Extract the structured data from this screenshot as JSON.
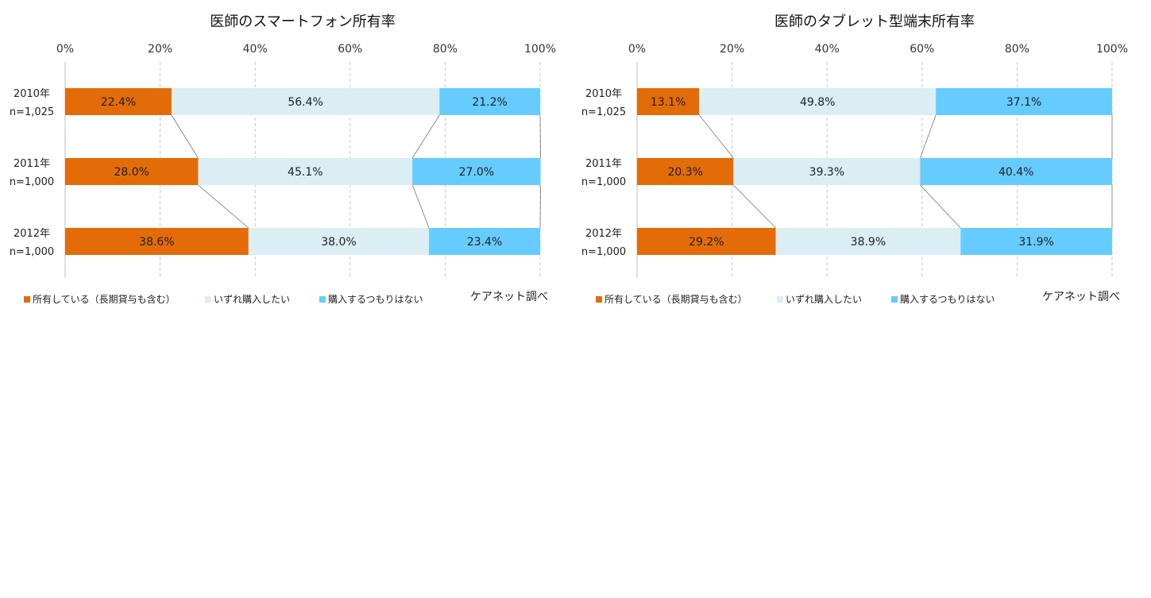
{
  "chart_data": [
    {
      "type": "bar",
      "stacked": "percent",
      "orientation": "horizontal",
      "title": "医師のスマートフォン所有率",
      "categories": [
        {
          "year": "2010年",
          "n": "n=1,025"
        },
        {
          "year": "2011年",
          "n": "n=1,000"
        },
        {
          "year": "2012年",
          "n": "n=1,000"
        }
      ],
      "series": [
        {
          "name": "所有している（長期貸与も含む）",
          "color": "#E36C09",
          "values": [
            22.4,
            28.0,
            38.6
          ],
          "labels": [
            "22.4%",
            "28.0%",
            "38.6%"
          ]
        },
        {
          "name": "いずれ購入したい",
          "color": "#DAEEF3",
          "values": [
            56.4,
            45.1,
            38.0
          ],
          "labels": [
            "56.4%",
            "45.1%",
            "38.0%"
          ]
        },
        {
          "name": "購入するつもりはない",
          "color": "#66CCFF",
          "values": [
            21.2,
            27.0,
            23.4
          ],
          "labels": [
            "21.2%",
            "27.0%",
            "23.4%"
          ]
        }
      ],
      "xlim": [
        0,
        100
      ],
      "xticks": [
        "0%",
        "20%",
        "40%",
        "60%",
        "80%",
        "100%"
      ],
      "grid": true,
      "legend_position": "bottom",
      "source": "ケアネット調べ"
    },
    {
      "type": "bar",
      "stacked": "percent",
      "orientation": "horizontal",
      "title": "医師のタブレット型端末所有率",
      "categories": [
        {
          "year": "2010年",
          "n": "n=1,025"
        },
        {
          "year": "2011年",
          "n": "n=1,000"
        },
        {
          "year": "2012年",
          "n": "n=1,000"
        }
      ],
      "series": [
        {
          "name": "所有している（長期貸与も含む）",
          "color": "#E36C09",
          "values": [
            13.1,
            20.3,
            29.2
          ],
          "labels": [
            "13.1%",
            "20.3%",
            "29.2%"
          ]
        },
        {
          "name": "いずれ購入したい",
          "color": "#DAEEF3",
          "values": [
            49.8,
            39.3,
            38.9
          ],
          "labels": [
            "49.8%",
            "39.3%",
            "38.9%"
          ]
        },
        {
          "name": "購入するつもりはない",
          "color": "#66CCFF",
          "values": [
            37.1,
            40.4,
            31.9
          ],
          "labels": [
            "37.1%",
            "40.4%",
            "31.9%"
          ]
        }
      ],
      "xlim": [
        0,
        100
      ],
      "xticks": [
        "0%",
        "20%",
        "40%",
        "60%",
        "80%",
        "100%"
      ],
      "grid": true,
      "legend_position": "bottom",
      "source": "ケアネット調べ"
    }
  ]
}
